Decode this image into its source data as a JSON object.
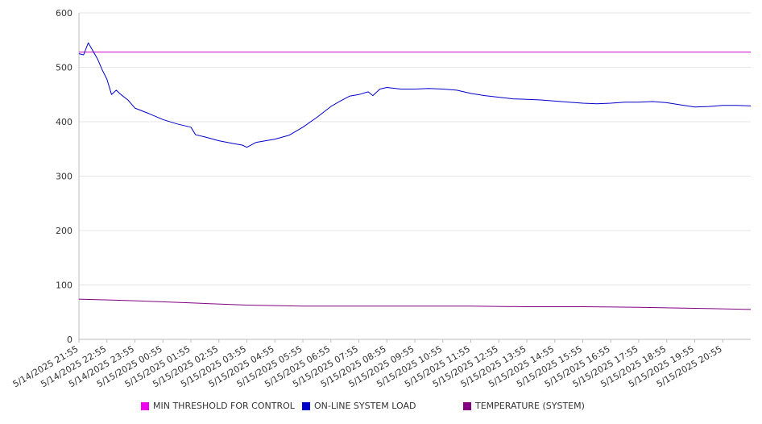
{
  "chart_data": {
    "type": "line",
    "title": "",
    "xlabel": "",
    "ylabel": "",
    "ylim": [
      0,
      600
    ],
    "yticks": [
      0,
      100,
      200,
      300,
      400,
      500,
      600
    ],
    "grid": true,
    "legend_position": "bottom",
    "x_start": "5/14/2025 21:55",
    "x_end": "5/15/2025 21:55",
    "x_tick_labels": [
      "5/14/2025 21:55",
      "5/14/2025 22:55",
      "5/14/2025 23:55",
      "5/15/2025 00:55",
      "5/15/2025 01:55",
      "5/15/2025 02:55",
      "5/15/2025 03:55",
      "5/15/2025 04:55",
      "5/15/2025 05:55",
      "5/15/2025 06:55",
      "5/15/2025 07:55",
      "5/15/2025 08:55",
      "5/15/2025 09:55",
      "5/15/2025 10:55",
      "5/15/2025 11:55",
      "5/15/2025 12:55",
      "5/15/2025 13:55",
      "5/15/2025 14:55",
      "5/15/2025 15:55",
      "5/15/2025 16:55",
      "5/15/2025 17:55",
      "5/15/2025 18:55",
      "5/15/2025 19:55",
      "5/15/2025 20:55"
    ],
    "series": [
      {
        "name": "MIN THRESHOLD FOR CONTROL",
        "color": "#cc00cc",
        "x": [
          "5/14/2025 21:55",
          "5/15/2025 21:55"
        ],
        "values": [
          528,
          528
        ]
      },
      {
        "name": "ON-LINE SYSTEM LOAD",
        "color": "#0000cc",
        "x": [
          "5/14/2025 21:55",
          "5/14/2025 22:05",
          "5/14/2025 22:15",
          "5/14/2025 22:25",
          "5/14/2025 22:35",
          "5/14/2025 22:45",
          "5/14/2025 22:55",
          "5/14/2025 23:05",
          "5/14/2025 23:15",
          "5/14/2025 23:25",
          "5/14/2025 23:40",
          "5/14/2025 23:55",
          "5/15/2025 00:25",
          "5/15/2025 00:55",
          "5/15/2025 01:25",
          "5/15/2025 01:55",
          "5/15/2025 02:05",
          "5/15/2025 02:25",
          "5/15/2025 02:55",
          "5/15/2025 03:25",
          "5/15/2025 03:45",
          "5/15/2025 03:55",
          "5/15/2025 04:15",
          "5/15/2025 04:35",
          "5/15/2025 04:55",
          "5/15/2025 05:25",
          "5/15/2025 05:55",
          "5/15/2025 06:25",
          "5/15/2025 06:55",
          "5/15/2025 07:15",
          "5/15/2025 07:35",
          "5/15/2025 07:55",
          "5/15/2025 08:15",
          "5/15/2025 08:25",
          "5/15/2025 08:40",
          "5/15/2025 08:55",
          "5/15/2025 09:25",
          "5/15/2025 09:55",
          "5/15/2025 10:25",
          "5/15/2025 10:55",
          "5/15/2025 11:25",
          "5/15/2025 11:55",
          "5/15/2025 12:25",
          "5/15/2025 12:55",
          "5/15/2025 13:25",
          "5/15/2025 13:55",
          "5/15/2025 14:25",
          "5/15/2025 14:55",
          "5/15/2025 15:25",
          "5/15/2025 15:55",
          "5/15/2025 16:25",
          "5/15/2025 16:55",
          "5/15/2025 17:25",
          "5/15/2025 17:55",
          "5/15/2025 18:25",
          "5/15/2025 18:55",
          "5/15/2025 19:25",
          "5/15/2025 19:55",
          "5/15/2025 20:25",
          "5/15/2025 20:55",
          "5/15/2025 21:25",
          "5/15/2025 21:55"
        ],
        "values": [
          525,
          523,
          545,
          530,
          515,
          495,
          478,
          450,
          458,
          450,
          440,
          425,
          415,
          404,
          396,
          390,
          376,
          372,
          365,
          360,
          357,
          353,
          362,
          365,
          368,
          375,
          390,
          408,
          428,
          438,
          447,
          450,
          455,
          448,
          460,
          463,
          460,
          460,
          461,
          460,
          458,
          452,
          448,
          445,
          442,
          441,
          440,
          438,
          436,
          434,
          433,
          434,
          436,
          436,
          437,
          435,
          431,
          427,
          428,
          430,
          430,
          429
        ]
      },
      {
        "name": "TEMPERATURE (SYSTEM)",
        "color": "#800080",
        "x": [
          "5/14/2025 21:55",
          "5/14/2025 23:55",
          "5/15/2025 01:55",
          "5/15/2025 03:55",
          "5/15/2025 05:55",
          "5/15/2025 07:55",
          "5/15/2025 09:55",
          "5/15/2025 11:55",
          "5/15/2025 13:55",
          "5/15/2025 15:55",
          "5/15/2025 17:55",
          "5/15/2025 19:55",
          "5/15/2025 21:55"
        ],
        "values": [
          74,
          71,
          67,
          63,
          61,
          61,
          61,
          61,
          60,
          60,
          59,
          57,
          55
        ]
      }
    ]
  }
}
